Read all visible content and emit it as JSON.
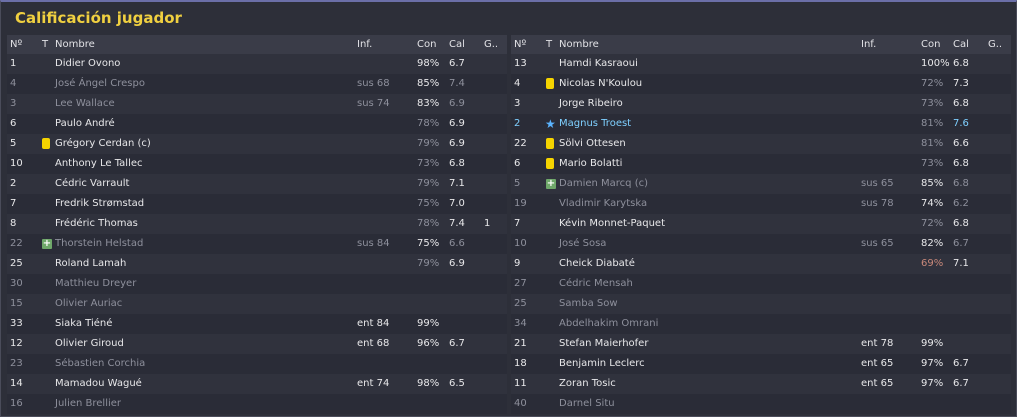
{
  "title": "Calificación jugador",
  "headers": {
    "num": "Nº",
    "t": "T",
    "name": "Nombre",
    "inf": "Inf.",
    "con": "Con",
    "cal": "Cal",
    "g": "G.."
  },
  "left": [
    {
      "num": "1",
      "name": "Didier Ovono",
      "inf": "",
      "con": "98%",
      "cal": "6.7",
      "g": "",
      "icon": "",
      "dim": false,
      "hl": false
    },
    {
      "num": "4",
      "name": "José Ángel Crespo",
      "inf": "sus 68",
      "con": "85%",
      "cal": "7.4",
      "g": "",
      "icon": "",
      "dim": true,
      "hl": false
    },
    {
      "num": "3",
      "name": "Lee Wallace",
      "inf": "sus 74",
      "con": "83%",
      "cal": "6.9",
      "g": "",
      "icon": "",
      "dim": true,
      "hl": false
    },
    {
      "num": "6",
      "name": "Paulo André",
      "inf": "",
      "con": "78%",
      "cal": "6.9",
      "g": "",
      "icon": "",
      "dim": false,
      "hl": false
    },
    {
      "num": "5",
      "name": "Grégory Cerdan (c)",
      "inf": "",
      "con": "79%",
      "cal": "6.9",
      "g": "",
      "icon": "yellow-card",
      "dim": false,
      "hl": false
    },
    {
      "num": "10",
      "name": "Anthony Le Tallec",
      "inf": "",
      "con": "73%",
      "cal": "6.8",
      "g": "",
      "icon": "",
      "dim": false,
      "hl": false
    },
    {
      "num": "2",
      "name": "Cédric Varrault",
      "inf": "",
      "con": "79%",
      "cal": "7.1",
      "g": "",
      "icon": "",
      "dim": false,
      "hl": false
    },
    {
      "num": "7",
      "name": "Fredrik Strømstad",
      "inf": "",
      "con": "75%",
      "cal": "7.0",
      "g": "",
      "icon": "",
      "dim": false,
      "hl": false
    },
    {
      "num": "8",
      "name": "Frédéric Thomas",
      "inf": "",
      "con": "78%",
      "cal": "7.4",
      "g": "1",
      "icon": "",
      "dim": false,
      "hl": false
    },
    {
      "num": "22",
      "name": "Thorstein Helstad",
      "inf": "sus 84",
      "con": "75%",
      "cal": "6.6",
      "g": "",
      "icon": "plus",
      "dim": true,
      "hl": false
    },
    {
      "num": "25",
      "name": "Roland Lamah",
      "inf": "",
      "con": "79%",
      "cal": "6.9",
      "g": "",
      "icon": "",
      "dim": false,
      "hl": false
    },
    {
      "num": "30",
      "name": "Matthieu Dreyer",
      "inf": "",
      "con": "",
      "cal": "",
      "g": "",
      "icon": "",
      "dim": true,
      "hl": false
    },
    {
      "num": "15",
      "name": "Olivier Auriac",
      "inf": "",
      "con": "",
      "cal": "",
      "g": "",
      "icon": "",
      "dim": true,
      "hl": false
    },
    {
      "num": "33",
      "name": "Siaka Tiéné",
      "inf": "ent 84",
      "con": "99%",
      "cal": "",
      "g": "",
      "icon": "",
      "dim": false,
      "hl": false
    },
    {
      "num": "12",
      "name": "Olivier Giroud",
      "inf": "ent 68",
      "con": "96%",
      "cal": "6.7",
      "g": "",
      "icon": "",
      "dim": false,
      "hl": false
    },
    {
      "num": "23",
      "name": "Sébastien Corchia",
      "inf": "",
      "con": "",
      "cal": "",
      "g": "",
      "icon": "",
      "dim": true,
      "hl": false
    },
    {
      "num": "14",
      "name": "Mamadou Wagué",
      "inf": "ent 74",
      "con": "98%",
      "cal": "6.5",
      "g": "",
      "icon": "",
      "dim": false,
      "hl": false
    },
    {
      "num": "16",
      "name": "Julien Brellier",
      "inf": "",
      "con": "",
      "cal": "",
      "g": "",
      "icon": "",
      "dim": true,
      "hl": false
    }
  ],
  "right": [
    {
      "num": "13",
      "name": "Hamdi Kasraoui",
      "inf": "",
      "con": "100%",
      "cal": "6.8",
      "g": "",
      "icon": "",
      "dim": false,
      "hl": false
    },
    {
      "num": "4",
      "name": "Nicolas N'Koulou",
      "inf": "",
      "con": "72%",
      "cal": "7.3",
      "g": "",
      "icon": "yellow-card",
      "dim": false,
      "hl": false
    },
    {
      "num": "3",
      "name": "Jorge Ribeiro",
      "inf": "",
      "con": "73%",
      "cal": "6.8",
      "g": "",
      "icon": "",
      "dim": false,
      "hl": false
    },
    {
      "num": "2",
      "name": "Magnus Troest",
      "inf": "",
      "con": "81%",
      "cal": "7.6",
      "g": "",
      "icon": "star",
      "dim": false,
      "hl": true
    },
    {
      "num": "22",
      "name": "Sölvi Ottesen",
      "inf": "",
      "con": "81%",
      "cal": "6.6",
      "g": "",
      "icon": "yellow-card",
      "dim": false,
      "hl": false
    },
    {
      "num": "6",
      "name": "Mario Bolatti",
      "inf": "",
      "con": "73%",
      "cal": "6.8",
      "g": "",
      "icon": "yellow-card",
      "dim": false,
      "hl": false
    },
    {
      "num": "5",
      "name": "Damien Marcq (c)",
      "inf": "sus 65",
      "con": "85%",
      "cal": "6.8",
      "g": "",
      "icon": "plus",
      "dim": true,
      "hl": false
    },
    {
      "num": "19",
      "name": "Vladimir Karytska",
      "inf": "sus 78",
      "con": "74%",
      "cal": "6.2",
      "g": "",
      "icon": "",
      "dim": true,
      "hl": false
    },
    {
      "num": "7",
      "name": "Kévin Monnet-Paquet",
      "inf": "",
      "con": "72%",
      "cal": "6.8",
      "g": "",
      "icon": "",
      "dim": false,
      "hl": false
    },
    {
      "num": "10",
      "name": "José Sosa",
      "inf": "sus 65",
      "con": "82%",
      "cal": "6.7",
      "g": "",
      "icon": "",
      "dim": true,
      "hl": false
    },
    {
      "num": "9",
      "name": "Cheick Diabaté",
      "inf": "",
      "con": "69%",
      "cal": "7.1",
      "g": "",
      "icon": "",
      "dim": false,
      "hl": false,
      "low": true
    },
    {
      "num": "27",
      "name": "Cédric Mensah",
      "inf": "",
      "con": "",
      "cal": "",
      "g": "",
      "icon": "",
      "dim": true,
      "hl": false
    },
    {
      "num": "25",
      "name": "Samba Sow",
      "inf": "",
      "con": "",
      "cal": "",
      "g": "",
      "icon": "",
      "dim": true,
      "hl": false
    },
    {
      "num": "34",
      "name": "Abdelhakim Omrani",
      "inf": "",
      "con": "",
      "cal": "",
      "g": "",
      "icon": "",
      "dim": true,
      "hl": false
    },
    {
      "num": "21",
      "name": "Stefan Maierhofer",
      "inf": "ent 78",
      "con": "99%",
      "cal": "",
      "g": "",
      "icon": "",
      "dim": false,
      "hl": false
    },
    {
      "num": "18",
      "name": "Benjamin Leclerc",
      "inf": "ent 65",
      "con": "97%",
      "cal": "6.7",
      "g": "",
      "icon": "",
      "dim": false,
      "hl": false
    },
    {
      "num": "11",
      "name": "Zoran Tosic",
      "inf": "ent 65",
      "con": "97%",
      "cal": "6.7",
      "g": "",
      "icon": "",
      "dim": false,
      "hl": false
    },
    {
      "num": "40",
      "name": "Darnel Situ",
      "inf": "",
      "con": "",
      "cal": "",
      "g": "",
      "icon": "",
      "dim": true,
      "hl": false
    }
  ]
}
